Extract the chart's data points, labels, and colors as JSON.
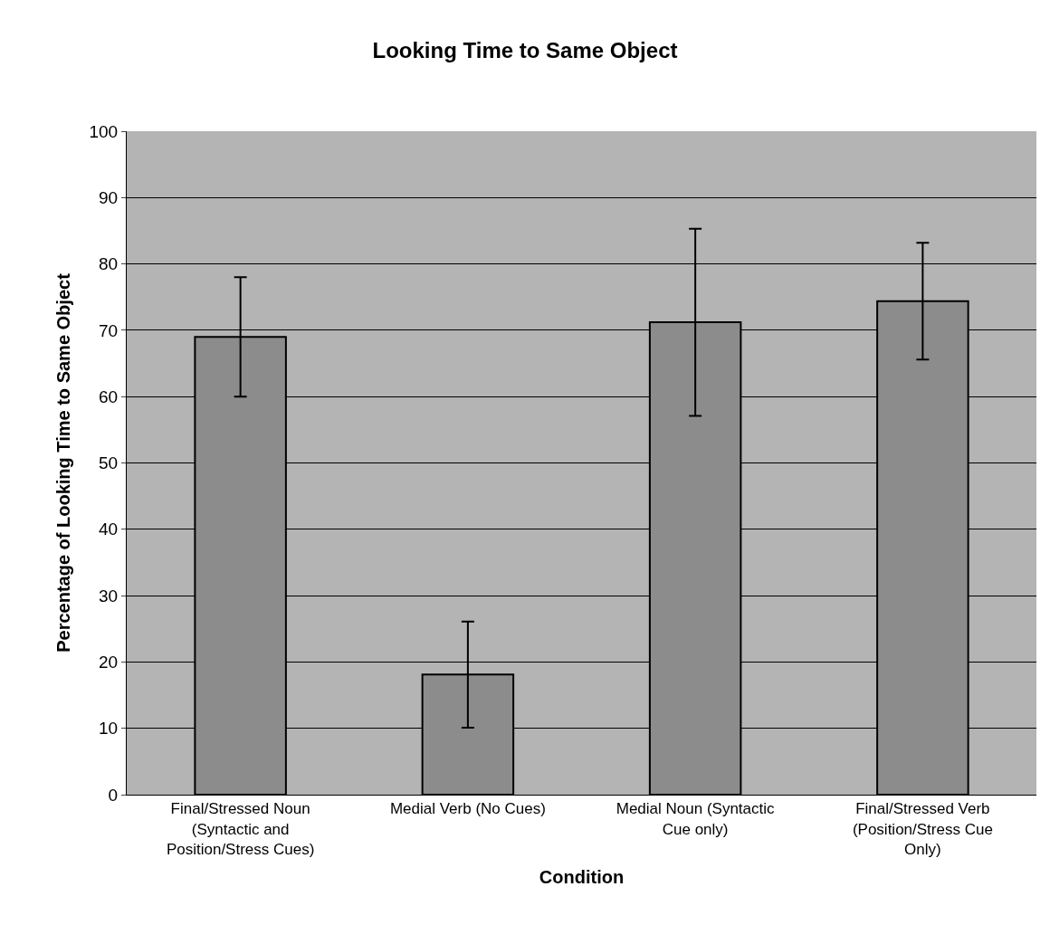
{
  "chart_data": {
    "type": "bar",
    "title": "Looking Time to Same Object",
    "xlabel": "Condition",
    "ylabel": "Percentage of Looking Time to Same Object",
    "categories": [
      "Final/Stressed Noun (Syntactic and Position/Stress Cues)",
      "Medial Verb (No Cues)",
      "Medial Noun (Syntactic Cue only)",
      "Final/Stressed Verb (Position/Stress Cue Only)"
    ],
    "values": [
      69,
      18.1,
      71.2,
      74.4
    ],
    "errors": [
      9,
      8,
      14.1,
      8.8
    ],
    "color": "#8c8c8c",
    "ylim": [
      0,
      100
    ],
    "yticks": [
      0,
      10,
      20,
      30,
      40,
      50,
      60,
      70,
      80,
      90,
      100
    ],
    "grid": "y"
  }
}
